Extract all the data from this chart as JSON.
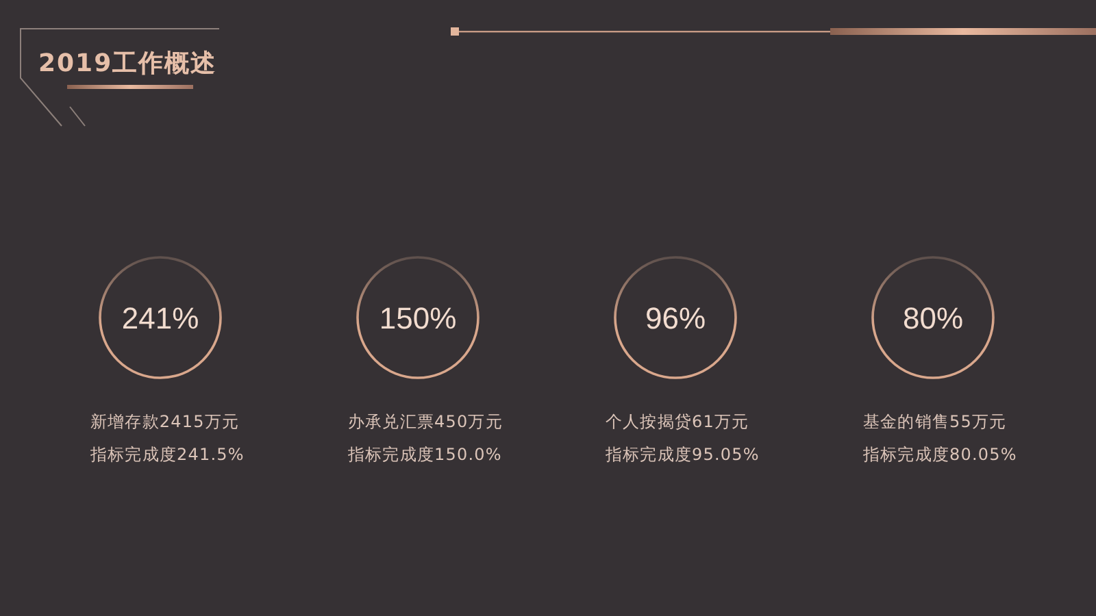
{
  "chart_data": {
    "type": "other",
    "title": "2019工作概述",
    "categories": [
      "新增存款2415万元",
      "办承兑汇票450万元",
      "个人按揭贷61万元",
      "基金的销售55万元"
    ],
    "values": [
      241,
      150,
      96,
      80
    ],
    "value_labels": [
      "241%",
      "150%",
      "96%",
      "80%"
    ],
    "annotations": [
      "指标完成度241.5%",
      "指标完成度150.0%",
      "指标完成度95.05%",
      "指标完成度80.05%"
    ],
    "color": "#d9a78c"
  }
}
